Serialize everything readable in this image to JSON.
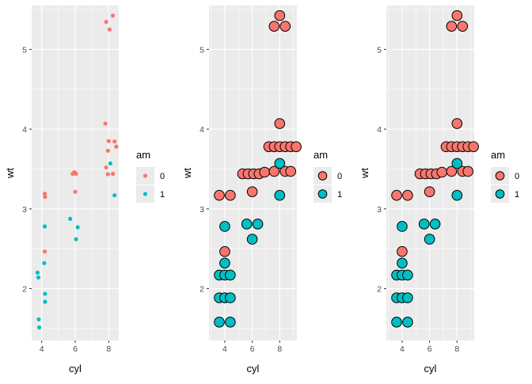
{
  "chart_data": [
    {
      "type": "scatter",
      "panel": 1,
      "marker": "small-dot",
      "xlabel": "cyl",
      "ylabel": "wt",
      "xlim": [
        3.4,
        8.6
      ],
      "ylim": [
        1.35,
        5.55
      ],
      "x_ticks": [
        4,
        6,
        8
      ],
      "y_ticks": [
        2,
        3,
        4,
        5
      ],
      "legend": {
        "title": "am",
        "position": "right",
        "entries": [
          {
            "label": "0",
            "color": "#F8766D"
          },
          {
            "label": "1",
            "color": "#00BFC4"
          }
        ]
      },
      "series": [
        {
          "name": "0",
          "color": "#F8766D",
          "points": [
            [
              4.18,
              3.19
            ],
            [
              4.2,
              3.15
            ],
            [
              4.18,
              2.465
            ],
            [
              5.85,
              3.44
            ],
            [
              5.95,
              3.46
            ],
            [
              6.05,
              3.44
            ],
            [
              6.0,
              3.215
            ],
            [
              7.85,
              5.345
            ],
            [
              8.05,
              5.25
            ],
            [
              8.25,
              5.424
            ],
            [
              7.8,
              4.07
            ],
            [
              8.0,
              3.85
            ],
            [
              8.35,
              3.845
            ],
            [
              8.45,
              3.78
            ],
            [
              7.95,
              3.73
            ],
            [
              7.85,
              3.52
            ],
            [
              7.95,
              3.435
            ],
            [
              8.25,
              3.44
            ]
          ]
        },
        {
          "name": "1",
          "color": "#00BFC4",
          "points": [
            [
              3.75,
              2.2
            ],
            [
              3.8,
              2.14
            ],
            [
              3.82,
              1.615
            ],
            [
              3.85,
              1.513
            ],
            [
              4.18,
              2.78
            ],
            [
              4.15,
              2.32
            ],
            [
              4.2,
              1.935
            ],
            [
              4.2,
              1.835
            ],
            [
              5.7,
              2.875
            ],
            [
              6.15,
              2.77
            ],
            [
              6.05,
              2.62
            ],
            [
              8.1,
              3.57
            ],
            [
              8.35,
              3.17
            ]
          ]
        }
      ]
    },
    {
      "type": "scatter",
      "panel": 2,
      "marker": "large-outlined-circle",
      "xlabel": "cyl",
      "ylabel": "wt",
      "xlim": [
        2.85,
        9.25
      ],
      "ylim": [
        1.35,
        5.55
      ],
      "x_ticks": [
        4,
        6,
        8
      ],
      "y_ticks": [
        2,
        3,
        4,
        5
      ],
      "legend": {
        "title": "am",
        "position": "right",
        "entries": [
          {
            "label": "0",
            "color": "#F8766D"
          },
          {
            "label": "1",
            "color": "#00BFC4"
          }
        ]
      },
      "series": [
        {
          "name": "0",
          "color": "#F8766D",
          "points": [
            [
              3.6,
              3.17
            ],
            [
              4.4,
              3.17
            ],
            [
              4.0,
              2.465
            ],
            [
              5.3,
              3.44
            ],
            [
              5.7,
              3.44
            ],
            [
              6.1,
              3.44
            ],
            [
              6.5,
              3.44
            ],
            [
              6.9,
              3.46
            ],
            [
              6.0,
              3.215
            ],
            [
              7.6,
              5.29
            ],
            [
              8.4,
              5.29
            ],
            [
              8.0,
              5.424
            ],
            [
              8.0,
              4.07
            ],
            [
              7.2,
              3.78
            ],
            [
              7.6,
              3.78
            ],
            [
              8.0,
              3.78
            ],
            [
              8.4,
              3.78
            ],
            [
              8.8,
              3.78
            ],
            [
              9.2,
              3.78
            ],
            [
              7.6,
              3.47
            ],
            [
              8.4,
              3.47
            ],
            [
              8.8,
              3.47
            ]
          ]
        },
        {
          "name": "1",
          "color": "#00BFC4",
          "points": [
            [
              3.6,
              2.17
            ],
            [
              4.0,
              2.17
            ],
            [
              4.4,
              2.17
            ],
            [
              3.6,
              1.885
            ],
            [
              4.0,
              1.885
            ],
            [
              4.4,
              1.885
            ],
            [
              3.6,
              1.58
            ],
            [
              4.4,
              1.58
            ],
            [
              4.0,
              2.78
            ],
            [
              4.0,
              2.32
            ],
            [
              5.6,
              2.81
            ],
            [
              6.4,
              2.81
            ],
            [
              6.0,
              2.62
            ],
            [
              8.0,
              3.57
            ],
            [
              8.0,
              3.17
            ]
          ]
        }
      ]
    },
    {
      "type": "scatter",
      "panel": 3,
      "marker": "large-outlined-circle",
      "xlabel": "cyl",
      "ylabel": "wt",
      "xlim": [
        2.85,
        9.25
      ],
      "ylim": [
        1.35,
        5.55
      ],
      "x_ticks": [
        4,
        6,
        8
      ],
      "y_ticks": [
        2,
        3,
        4,
        5
      ],
      "legend": {
        "title": "am",
        "position": "right",
        "entries": [
          {
            "label": "0",
            "color": "#F8766D"
          },
          {
            "label": "1",
            "color": "#00BFC4"
          }
        ]
      },
      "series": [
        {
          "name": "0",
          "color": "#F8766D",
          "points": [
            [
              3.6,
              3.17
            ],
            [
              4.4,
              3.17
            ],
            [
              4.0,
              2.465
            ],
            [
              5.3,
              3.44
            ],
            [
              5.7,
              3.44
            ],
            [
              6.1,
              3.44
            ],
            [
              6.5,
              3.44
            ],
            [
              6.9,
              3.46
            ],
            [
              6.0,
              3.215
            ],
            [
              7.6,
              5.29
            ],
            [
              8.4,
              5.29
            ],
            [
              8.0,
              5.424
            ],
            [
              8.0,
              4.07
            ],
            [
              7.2,
              3.78
            ],
            [
              7.6,
              3.78
            ],
            [
              8.0,
              3.78
            ],
            [
              8.4,
              3.78
            ],
            [
              8.8,
              3.78
            ],
            [
              9.2,
              3.78
            ],
            [
              7.6,
              3.47
            ],
            [
              8.4,
              3.47
            ],
            [
              8.8,
              3.47
            ]
          ]
        },
        {
          "name": "1",
          "color": "#00BFC4",
          "points": [
            [
              3.6,
              2.17
            ],
            [
              4.0,
              2.17
            ],
            [
              4.4,
              2.17
            ],
            [
              3.6,
              1.885
            ],
            [
              4.0,
              1.885
            ],
            [
              4.4,
              1.885
            ],
            [
              3.6,
              1.58
            ],
            [
              4.4,
              1.58
            ],
            [
              4.0,
              2.78
            ],
            [
              4.0,
              2.32
            ],
            [
              5.6,
              2.81
            ],
            [
              6.4,
              2.81
            ],
            [
              6.0,
              2.62
            ],
            [
              8.0,
              3.57
            ],
            [
              8.0,
              3.17
            ]
          ]
        }
      ]
    }
  ],
  "colors": {
    "panel_background": "#EBEBEB",
    "gridline": "#FFFFFF",
    "outline": "#000000"
  }
}
